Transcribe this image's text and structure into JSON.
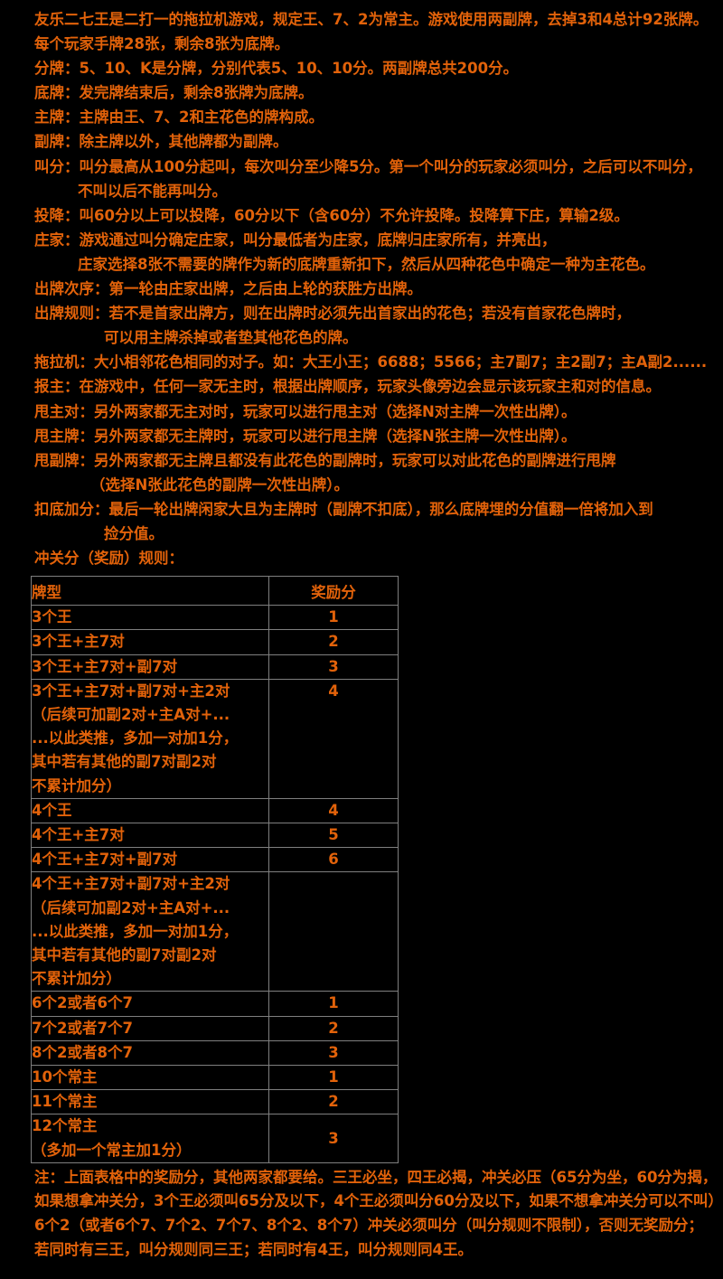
{
  "page": {
    "background_color": "#000000",
    "text_color": "#e2620a",
    "table_border_color": "#7f7f7f"
  },
  "rules_lines": [
    {
      "indent": 0,
      "text": "友乐二七王是二打一的拖拉机游戏，规定王、7、2为常主。游戏使用两副牌，去掉3和4总计92张牌。"
    },
    {
      "indent": 0,
      "text": "每个玩家手牌28张，剩余8张为底牌。"
    },
    {
      "indent": 0,
      "text": "分牌：5、10、K是分牌，分别代表5、10、10分。两副牌总共200分。"
    },
    {
      "indent": 0,
      "text": "底牌：发完牌结束后，剩余8张牌为底牌。"
    },
    {
      "indent": 0,
      "text": "主牌：主牌由王、7、2和主花色的牌构成。"
    },
    {
      "indent": 0,
      "text": "副牌：除主牌以外，其他牌都为副牌。"
    },
    {
      "indent": 0,
      "text": "叫分：叫分最高从100分起叫，每次叫分至少降5分。第一个叫分的玩家必须叫分，之后可以不叫分，"
    },
    {
      "indent": 1,
      "text": "不叫以后不能再叫分。"
    },
    {
      "indent": 0,
      "text": "投降：叫60分以上可以投降，60分以下（含60分）不允许投降。投降算下庄，算输2级。"
    },
    {
      "indent": 0,
      "text": "庄家：游戏通过叫分确定庄家，叫分最低者为庄家，底牌归庄家所有，并亮出，"
    },
    {
      "indent": 1,
      "text": "庄家选择8张不需要的牌作为新的底牌重新扣下，然后从四种花色中确定一种为主花色。"
    },
    {
      "indent": 0,
      "text": "出牌次序：第一轮由庄家出牌，之后由上轮的获胜方出牌。"
    },
    {
      "indent": 0,
      "text": "出牌规则：若不是首家出牌方，则在出牌时必须先出首家出的花色；若没有首家花色牌时，"
    },
    {
      "indent": 3,
      "text": "可以用主牌杀掉或者垫其他花色的牌。"
    },
    {
      "indent": 0,
      "text": "拖拉机：大小相邻花色相同的对子。如：大王小王；6688；5566；主7副7；主2副7；主A副2......"
    },
    {
      "indent": 0,
      "text": "报主：在游戏中，任何一家无主时，根据出牌顺序，玩家头像旁边会显示该玩家主和对的信息。"
    },
    {
      "indent": 0,
      "text": "甩主对：另外两家都无主对时，玩家可以进行甩主对（选择N对主牌一次性出牌）。"
    },
    {
      "indent": 0,
      "text": "甩主牌：另外两家都无主牌时，玩家可以进行甩主牌（选择N张主牌一次性出牌）。"
    },
    {
      "indent": 0,
      "text": "甩副牌：另外两家都无主牌且都没有此花色的副牌时，玩家可以对此花色的副牌进行甩牌"
    },
    {
      "indent": 2,
      "text": "（选择N张此花色的副牌一次性出牌）。"
    },
    {
      "indent": 0,
      "text": "扣底加分：最后一轮出牌闲家大且为主牌时（副牌不扣底），那么底牌埋的分值翻一倍将加入到"
    },
    {
      "indent": 3,
      "text": "捡分值。"
    },
    {
      "indent": 0,
      "text": "冲关分（奖励）规则："
    }
  ],
  "table": {
    "headers": [
      "牌型",
      "奖励分"
    ],
    "rows": [
      {
        "type_lines": [
          "3个王"
        ],
        "score": "1",
        "score_align": "middle"
      },
      {
        "type_lines": [
          "3个王+主7对"
        ],
        "score": "2",
        "score_align": "middle"
      },
      {
        "type_lines": [
          "3个王+主7对+副7对"
        ],
        "score": "3",
        "score_align": "middle"
      },
      {
        "type_lines": [
          "3个王+主7对+副7对+主2对",
          "（后续可加副2对+主A对+...",
          "...以此类推，多加一对加1分，",
          "其中若有其他的副7对副2对",
          "不累计加分）"
        ],
        "score": "4",
        "score_align": "top"
      },
      {
        "type_lines": [
          "4个王"
        ],
        "score": "4",
        "score_align": "middle"
      },
      {
        "type_lines": [
          "4个王+主7对"
        ],
        "score": "5",
        "score_align": "middle"
      },
      {
        "type_lines": [
          "4个王+主7对+副7对"
        ],
        "score": "6",
        "score_align": "middle"
      },
      {
        "type_lines": [
          "4个王+主7对+副7对+主2对",
          "（后续可加副2对+主A对+...",
          "...以此类推，多加一对加1分，",
          "其中若有其他的副7对副2对",
          "不累计加分）"
        ],
        "score": "",
        "score_align": "top"
      },
      {
        "type_lines": [
          "6个2或者6个7"
        ],
        "score": "1",
        "score_align": "middle"
      },
      {
        "type_lines": [
          "7个2或者7个7"
        ],
        "score": "2",
        "score_align": "middle"
      },
      {
        "type_lines": [
          "8个2或者8个7"
        ],
        "score": "3",
        "score_align": "middle"
      },
      {
        "type_lines": [
          "10个常主"
        ],
        "score": "1",
        "score_align": "middle"
      },
      {
        "type_lines": [
          "11个常主"
        ],
        "score": "2",
        "score_align": "middle"
      },
      {
        "type_lines": [
          "12个常主",
          "（多加一个常主加1分）"
        ],
        "score": "3",
        "score_align": "middle"
      }
    ]
  },
  "notes": [
    "注：上面表格中的奖励分，其他两家都要给。三王必坐，四王必揭，冲关必压（65分为坐，60分为揭，",
    "如果想拿冲关分，3个王必须叫65分及以下，4个王必须叫分60分及以下，如果不想拿冲关分可以不叫）",
    "6个2（或者6个7、7个2、7个7、8个2、8个7）冲关必须叫分（叫分规则不限制），否则无奖励分；",
    "若同时有三王，叫分规则同三王；若同时有4王，叫分规则同4王。"
  ]
}
